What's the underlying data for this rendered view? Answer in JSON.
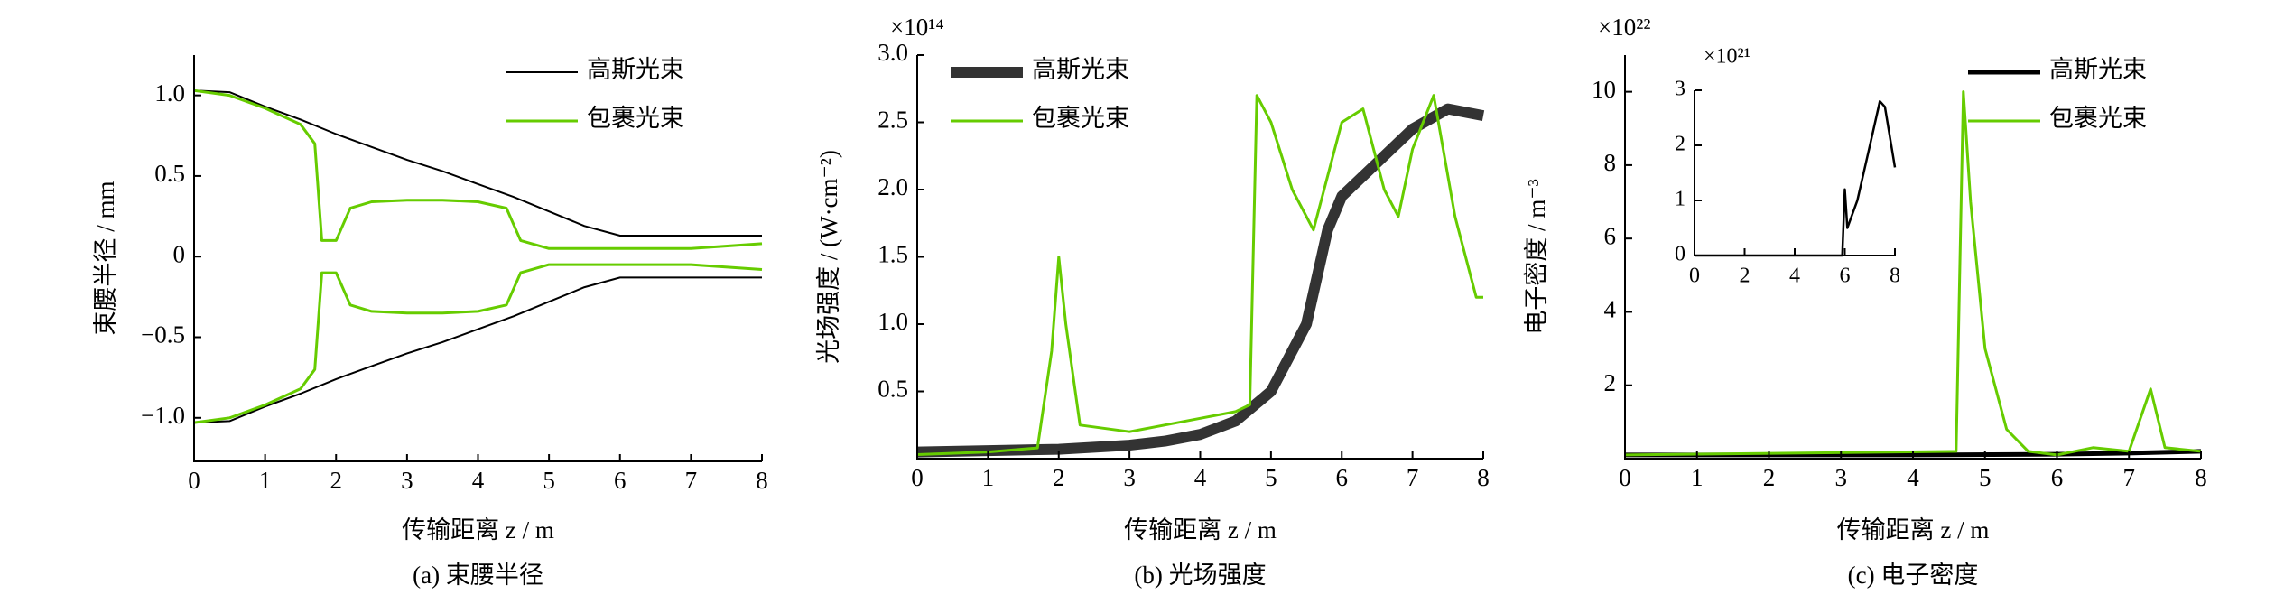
{
  "chart_data": [
    {
      "type": "line",
      "caption": "(a) 束腰半径",
      "xlabel": "传输距离 z / m",
      "ylabel": "束腰半径 / mm",
      "xlim": [
        0,
        8
      ],
      "xticks": [
        0,
        1,
        2,
        3,
        4,
        5,
        6,
        7,
        8
      ],
      "ylim": [
        -1.27,
        1.25
      ],
      "yticks": [
        {
          "value": -1,
          "label": "−1.0"
        },
        {
          "value": -0.5,
          "label": "−0.5"
        },
        0,
        0.5,
        {
          "value": 1,
          "label": "1.0"
        }
      ],
      "series": [
        {
          "name": "高斯光束",
          "color": "#000000",
          "linewidth": 2,
          "x": [
            0,
            0.5,
            1,
            1.5,
            2,
            2.5,
            3,
            3.5,
            4,
            4.5,
            5,
            5.5,
            6,
            6.5,
            7,
            7.5,
            8
          ],
          "values": [
            1.03,
            1.02,
            0.93,
            0.85,
            0.76,
            0.68,
            0.6,
            0.53,
            0.45,
            0.37,
            0.28,
            0.19,
            0.13,
            0.13,
            0.13,
            0.13,
            0.13
          ]
        },
        {
          "name": "包裹光束",
          "color": "#66cc00",
          "linewidth": 3,
          "x": [
            0,
            0.5,
            1,
            1.5,
            1.7,
            1.8,
            2,
            2.2,
            2.5,
            3,
            3.5,
            4,
            4.4,
            4.6,
            5,
            6,
            7,
            8
          ],
          "values": [
            1.03,
            1.0,
            0.92,
            0.82,
            0.7,
            0.1,
            0.1,
            0.3,
            0.34,
            0.35,
            0.35,
            0.34,
            0.3,
            0.1,
            0.05,
            0.05,
            0.05,
            0.08
          ]
        },
        {
          "color": "#000000",
          "linewidth": 2,
          "x": [
            0,
            0.5,
            1,
            1.5,
            2,
            2.5,
            3,
            3.5,
            4,
            4.5,
            5,
            5.5,
            6,
            6.5,
            7,
            7.5,
            8
          ],
          "values": [
            -1.03,
            -1.02,
            -0.93,
            -0.85,
            -0.76,
            -0.68,
            -0.6,
            -0.53,
            -0.45,
            -0.37,
            -0.28,
            -0.19,
            -0.13,
            -0.13,
            -0.13,
            -0.13,
            -0.13
          ]
        },
        {
          "color": "#66cc00",
          "linewidth": 3,
          "x": [
            0,
            0.5,
            1,
            1.5,
            1.7,
            1.8,
            2,
            2.2,
            2.5,
            3,
            3.5,
            4,
            4.4,
            4.6,
            5,
            6,
            7,
            8
          ],
          "values": [
            -1.03,
            -1.0,
            -0.92,
            -0.82,
            -0.7,
            -0.1,
            -0.1,
            -0.3,
            -0.34,
            -0.35,
            -0.35,
            -0.34,
            -0.3,
            -0.1,
            -0.05,
            -0.05,
            -0.05,
            -0.08
          ]
        }
      ]
    },
    {
      "type": "line",
      "caption": "(b) 光场强度",
      "xlabel": "传输距离 z / m",
      "ylabel": "光场强度 / (W·cm⁻²)",
      "multiplier": "×10¹⁴",
      "xlim": [
        0,
        8
      ],
      "xticks": [
        0,
        1,
        2,
        3,
        4,
        5,
        6,
        7,
        8
      ],
      "ylim": [
        0,
        3
      ],
      "yticks": [
        0.5,
        {
          "value": 1,
          "label": "1.0"
        },
        1.5,
        {
          "value": 2,
          "label": "2.0"
        },
        2.5,
        {
          "value": 3,
          "label": "3.0"
        }
      ],
      "series": [
        {
          "name": "高斯光束",
          "color": "#333333",
          "linewidth": 12,
          "x": [
            0,
            1,
            2,
            3,
            3.5,
            4,
            4.5,
            5,
            5.5,
            5.8,
            6,
            6.5,
            7,
            7.5,
            8
          ],
          "values": [
            0.05,
            0.06,
            0.07,
            0.1,
            0.13,
            0.18,
            0.28,
            0.5,
            1.0,
            1.7,
            1.95,
            2.2,
            2.45,
            2.6,
            2.55
          ]
        },
        {
          "name": "包裹光束",
          "color": "#66cc00",
          "linewidth": 3,
          "x": [
            0,
            1,
            1.7,
            1.9,
            2.0,
            2.1,
            2.3,
            3,
            4,
            4.5,
            4.7,
            4.8,
            5,
            5.3,
            5.6,
            6,
            6.3,
            6.6,
            6.8,
            7,
            7.3,
            7.6,
            7.9,
            8
          ],
          "values": [
            0.03,
            0.05,
            0.08,
            0.8,
            1.5,
            1.0,
            0.25,
            0.2,
            0.3,
            0.35,
            0.4,
            2.7,
            2.5,
            2.0,
            1.7,
            2.5,
            2.6,
            2.0,
            1.8,
            2.3,
            2.7,
            1.8,
            1.2,
            1.2
          ]
        }
      ]
    },
    {
      "type": "line",
      "caption": "(c) 电子密度",
      "xlabel": "传输距离 z / m",
      "ylabel": "电子密度 / m⁻³",
      "multiplier": "×10²²",
      "xlim": [
        0,
        8
      ],
      "xticks": [
        0,
        1,
        2,
        3,
        4,
        5,
        6,
        7,
        8
      ],
      "ylim": [
        0,
        11
      ],
      "yticks": [
        2,
        4,
        6,
        8,
        10
      ],
      "series": [
        {
          "name": "高斯光束",
          "color": "#000000",
          "linewidth": 5,
          "x": [
            0,
            2,
            4,
            6,
            7,
            8
          ],
          "values": [
            0.1,
            0.1,
            0.1,
            0.12,
            0.15,
            0.2
          ]
        },
        {
          "name": "包裹光束",
          "color": "#66cc00",
          "linewidth": 3,
          "x": [
            0,
            4.6,
            4.7,
            4.8,
            5,
            5.3,
            5.6,
            6,
            6.5,
            7,
            7.3,
            7.5,
            8
          ],
          "values": [
            0.1,
            0.2,
            10,
            7,
            3,
            0.8,
            0.2,
            0.1,
            0.3,
            0.2,
            1.9,
            0.3,
            0.2
          ]
        }
      ]
    },
    {
      "type": "line",
      "multiplier": "×10²¹",
      "xlim": [
        0,
        8
      ],
      "xticks": [
        0,
        2,
        4,
        6,
        8
      ],
      "ylim": [
        0,
        3
      ],
      "yticks": [
        0,
        1,
        2,
        3
      ],
      "series": [
        {
          "color": "#000000",
          "linewidth": 2.5,
          "x": [
            0,
            5.9,
            6,
            6.1,
            6.5,
            7,
            7.4,
            7.6,
            8
          ],
          "values": [
            0,
            0,
            1.2,
            0.5,
            1.0,
            2.0,
            2.8,
            2.7,
            1.6
          ]
        }
      ]
    }
  ]
}
